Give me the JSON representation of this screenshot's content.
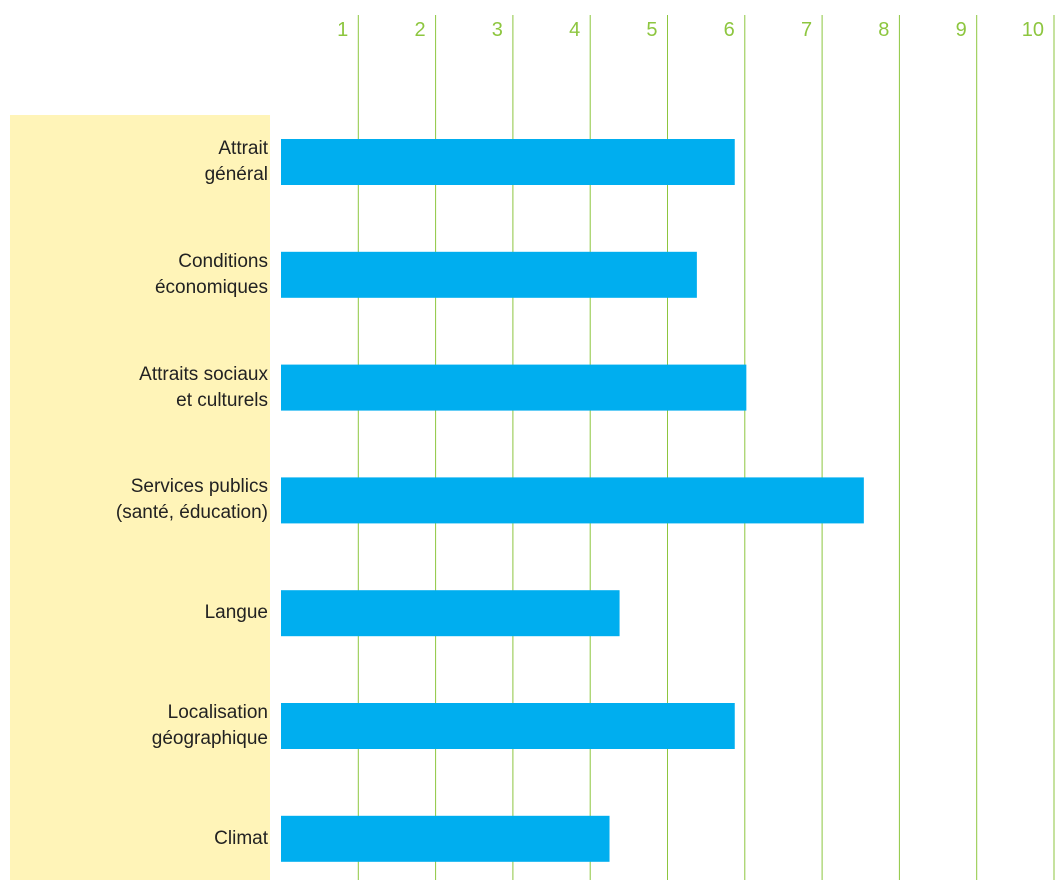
{
  "chart_data": {
    "type": "barh",
    "categories": [
      "Attrait\ngénéral",
      "Conditions\néconomiques",
      "Attraits sociaux\net culturels",
      "Services publics\n(santé, éducation)",
      "Langue",
      "Localisation\ngéographique",
      "Climat"
    ],
    "values": [
      5.87,
      5.38,
      6.02,
      7.54,
      4.38,
      5.87,
      4.25
    ],
    "color": "#00aeef",
    "xlim": [
      0,
      10
    ],
    "xticks": [
      1,
      2,
      3,
      4,
      5,
      6,
      7,
      8,
      9,
      10
    ],
    "grid": true
  }
}
